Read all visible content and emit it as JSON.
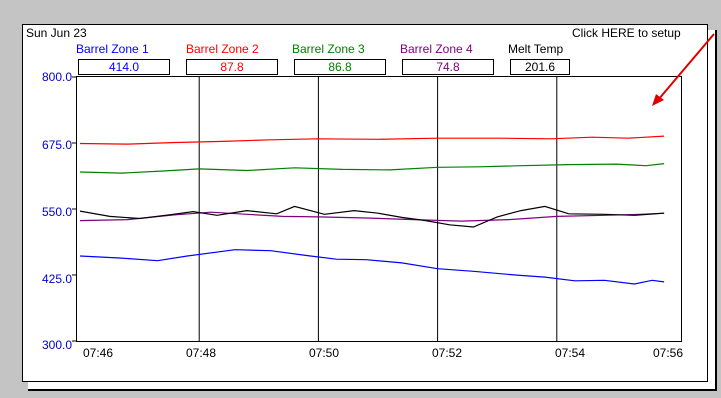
{
  "header": {
    "date": "Sun Jun 23",
    "setup_link": "Click HERE to setup"
  },
  "colors": {
    "background": "#c4c4c4",
    "panel": "#ffffff",
    "axis_text": "#0000cc",
    "arrow": "#e00000"
  },
  "legend": [
    {
      "name": "Barrel Zone 1",
      "value": "414.0",
      "color": "#0000ff"
    },
    {
      "name": "Barrel Zone 2",
      "value": "87.8",
      "color": "#ff0000"
    },
    {
      "name": "Barrel Zone 3",
      "value": "86.8",
      "color": "#008000"
    },
    {
      "name": "Barrel Zone 4",
      "value": "74.8",
      "color": "#800080"
    },
    {
      "name": "Melt Temp",
      "value": "201.6",
      "color": "#000000"
    }
  ],
  "chart_data": {
    "type": "line",
    "title": "",
    "xlabel": "",
    "ylabel": "",
    "ylim": [
      300,
      800
    ],
    "y_ticks": [
      "800.0",
      "675.0",
      "550.0",
      "425.0",
      "300.0"
    ],
    "x_ticks": [
      "07:46",
      "07:48",
      "07:50",
      "07:52",
      "07:54",
      "07:56"
    ],
    "xlim_minutes": [
      0,
      10
    ],
    "grid": "vertical",
    "series": [
      {
        "name": "Barrel Zone 1",
        "color": "#0000ff",
        "x": [
          0,
          0.7,
          1.3,
          1.8,
          2.6,
          3.2,
          3.8,
          4.3,
          4.8,
          5.4,
          6.0,
          6.6,
          7.3,
          7.8,
          8.3,
          8.8,
          9.3,
          9.6,
          9.8
        ],
        "y": [
          461,
          457,
          452,
          461,
          473,
          471,
          462,
          455,
          454,
          448,
          437,
          432,
          425,
          421,
          414,
          415,
          408,
          415,
          412
        ]
      },
      {
        "name": "Barrel Zone 2",
        "color": "#ff0000",
        "x": [
          0,
          0.8,
          1.6,
          2.4,
          3.2,
          4.0,
          5.0,
          6.0,
          7.0,
          7.9,
          8.6,
          9.2,
          9.8
        ],
        "y": [
          674,
          673,
          676,
          678,
          681,
          683,
          682,
          684,
          684,
          683,
          686,
          684,
          688
        ]
      },
      {
        "name": "Barrel Zone 3",
        "color": "#008000",
        "x": [
          0,
          0.7,
          1.4,
          2.0,
          2.8,
          3.6,
          4.4,
          5.2,
          6.0,
          6.7,
          7.4,
          8.2,
          9.0,
          9.5,
          9.8
        ],
        "y": [
          620,
          618,
          622,
          626,
          623,
          628,
          625,
          624,
          629,
          630,
          632,
          634,
          635,
          632,
          636
        ]
      },
      {
        "name": "Barrel Zone 4",
        "color": "#800080",
        "x": [
          0,
          0.8,
          1.6,
          2.2,
          2.8,
          3.4,
          4.0,
          4.8,
          5.6,
          6.4,
          7.2,
          8.0,
          8.8,
          9.4,
          9.8
        ],
        "y": [
          528,
          530,
          539,
          544,
          540,
          536,
          535,
          533,
          530,
          527,
          530,
          536,
          538,
          540,
          542
        ]
      },
      {
        "name": "Melt Temp",
        "color": "#000000",
        "x": [
          0,
          0.5,
          1.0,
          1.5,
          1.9,
          2.3,
          2.8,
          3.3,
          3.6,
          4.1,
          4.6,
          5.0,
          5.4,
          5.8,
          6.2,
          6.6,
          7.0,
          7.4,
          7.8,
          8.2,
          8.8,
          9.3,
          9.8
        ],
        "y": [
          546,
          536,
          532,
          539,
          545,
          538,
          547,
          541,
          555,
          540,
          547,
          542,
          534,
          528,
          520,
          516,
          535,
          547,
          555,
          541,
          540,
          538,
          542
        ]
      }
    ]
  }
}
